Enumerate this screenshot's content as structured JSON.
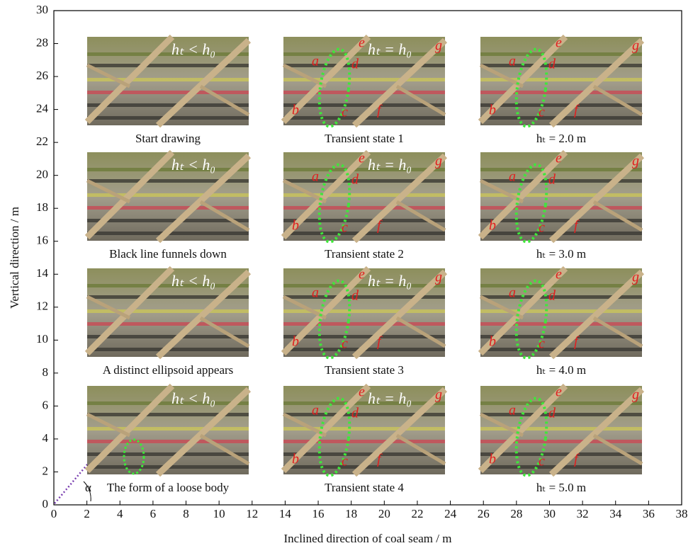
{
  "axes": {
    "xlabel": "Inclined direction of coal seam / m",
    "ylabel": "Vertical direction / m",
    "xlim": [
      0,
      38
    ],
    "ylim": [
      0,
      30
    ],
    "xticks": [
      0,
      2,
      4,
      6,
      8,
      10,
      12,
      14,
      16,
      18,
      20,
      22,
      24,
      26,
      28,
      30,
      32,
      34,
      36,
      38
    ],
    "yticks": [
      0,
      2,
      4,
      6,
      8,
      10,
      12,
      14,
      16,
      18,
      20,
      22,
      24,
      26,
      28,
      30
    ],
    "angle_label": "α"
  },
  "panels": [
    {
      "caption": "Start drawing",
      "overlay": "hₜ < h₀"
    },
    {
      "caption": "Transient state 1",
      "overlay": "hₜ = h₀",
      "letters": [
        "a",
        "b",
        "c",
        "d",
        "e",
        "f",
        "g"
      ]
    },
    {
      "caption": "hₜ = 2.0 m",
      "letters": [
        "a",
        "b",
        "c",
        "d",
        "e",
        "f",
        "g"
      ]
    },
    {
      "caption": "Black line funnels down",
      "overlay": "hₜ < h₀"
    },
    {
      "caption": "Transient state 2",
      "overlay": "hₜ = h₀",
      "letters": [
        "a",
        "b",
        "c",
        "d",
        "e",
        "f",
        "g"
      ]
    },
    {
      "caption": "hₜ = 3.0 m",
      "letters": [
        "a",
        "b",
        "c",
        "d",
        "e",
        "f",
        "g"
      ]
    },
    {
      "caption": "A distinct ellipsoid appears",
      "overlay": "hₜ < h₀"
    },
    {
      "caption": "Transient state 3",
      "overlay": "hₜ = h₀",
      "letters": [
        "a",
        "b",
        "c",
        "d",
        "e",
        "f",
        "g"
      ]
    },
    {
      "caption": "hₜ = 4.0 m",
      "letters": [
        "a",
        "b",
        "c",
        "d",
        "e",
        "f",
        "g"
      ]
    },
    {
      "caption": "The form of a loose body",
      "overlay": "hₜ < h₀"
    },
    {
      "caption": "Transient state 4",
      "overlay": "hₜ = h₀",
      "letters": [
        "a",
        "b",
        "c",
        "d",
        "e",
        "f",
        "g"
      ]
    },
    {
      "caption": "hₜ = 5.0 m",
      "letters": [
        "a",
        "b",
        "c",
        "d",
        "e",
        "f",
        "g"
      ]
    }
  ]
}
